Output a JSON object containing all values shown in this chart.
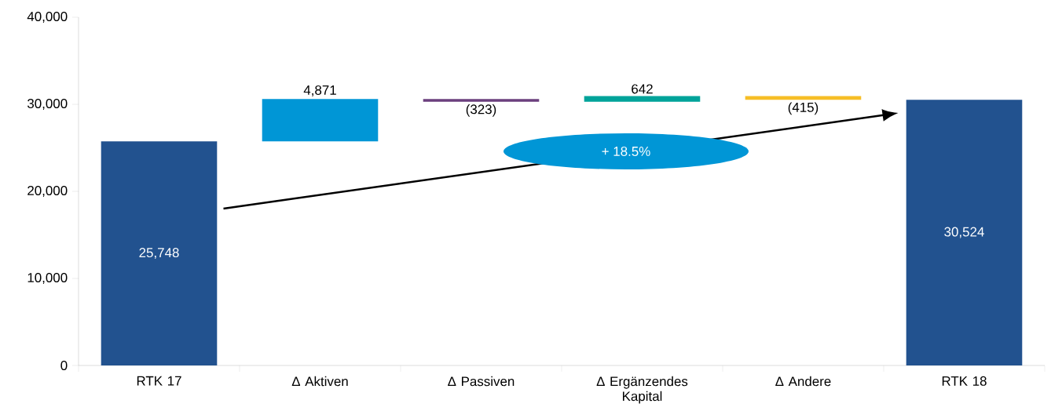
{
  "chart_data": {
    "type": "bar",
    "categories": [
      "RTK 17",
      "Δ  Aktiven",
      "Δ  Passiven",
      "Δ  Ergänzendes Kapital",
      "Δ  Andere",
      "RTK 18"
    ],
    "values": [
      25748,
      4871,
      -323,
      642,
      -415,
      30524
    ],
    "base": [
      0,
      25748,
      30619,
      30296,
      30938,
      0
    ],
    "colors": [
      "#22528f",
      "#0096d6",
      "#6b3f7e",
      "#00a39a",
      "#f6be26",
      "#22528f"
    ],
    "value_labels": [
      "25,748",
      "4,871",
      "(323)",
      "642",
      "(415)",
      "30,524"
    ],
    "ylim": [
      0,
      40000
    ],
    "yticks": [
      {
        "value": 0,
        "label": "0"
      },
      {
        "value": 10000,
        "label": "10,000"
      },
      {
        "value": 20000,
        "label": "20,000"
      },
      {
        "value": 30000,
        "label": "30,000"
      },
      {
        "value": 40000,
        "label": "40,000"
      }
    ],
    "annotations": [
      "+ 18.5%"
    ],
    "grid": false
  }
}
